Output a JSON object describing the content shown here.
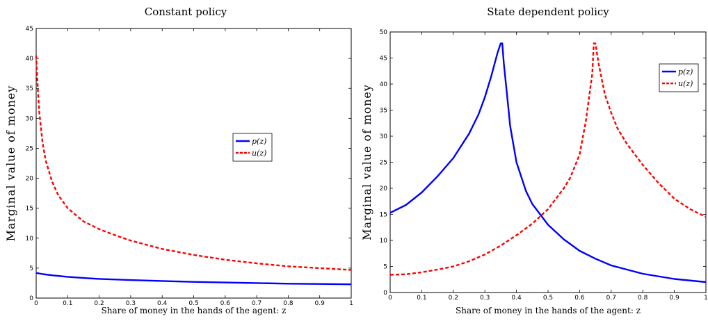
{
  "chart_data": [
    {
      "type": "line",
      "title": "Constant policy",
      "xlabel": "Share of money in the hands of the agent: z",
      "ylabel": "Marginal value of money",
      "xlim": [
        0,
        1
      ],
      "ylim": [
        0,
        45
      ],
      "xticks": [
        "0",
        "0.1",
        "0.2",
        "0.3",
        "0.4",
        "0.5",
        "0.6",
        "0.7",
        "0.8",
        "0.9",
        "1"
      ],
      "yticks": [
        "0",
        "5",
        "10",
        "15",
        "20",
        "25",
        "30",
        "35",
        "40",
        "45"
      ],
      "legend_position": "center-right",
      "grid": false,
      "series": [
        {
          "name": "p(z)",
          "color": "#0000ff",
          "style": "solid",
          "x": [
            0,
            0.02,
            0.05,
            0.1,
            0.15,
            0.2,
            0.3,
            0.4,
            0.5,
            0.6,
            0.7,
            0.8,
            0.9,
            1.0
          ],
          "y": [
            4.2,
            4.0,
            3.8,
            3.55,
            3.35,
            3.2,
            3.0,
            2.85,
            2.7,
            2.6,
            2.5,
            2.4,
            2.35,
            2.3
          ]
        },
        {
          "name": "u(z)",
          "color": "#ff0000",
          "style": "dashed",
          "x": [
            0,
            0.005,
            0.01,
            0.02,
            0.03,
            0.05,
            0.07,
            0.1,
            0.15,
            0.2,
            0.25,
            0.3,
            0.4,
            0.5,
            0.6,
            0.7,
            0.8,
            0.9,
            1.0
          ],
          "y": [
            40.5,
            35.0,
            31.0,
            26.0,
            23.0,
            19.5,
            17.2,
            15.0,
            12.8,
            11.5,
            10.5,
            9.6,
            8.2,
            7.2,
            6.4,
            5.8,
            5.3,
            5.0,
            4.7
          ]
        }
      ]
    },
    {
      "type": "line",
      "title": "State dependent policy",
      "xlabel": "Share of money in the hands of the agent: z",
      "ylabel": "Marginal value of money",
      "xlim": [
        0,
        1
      ],
      "ylim": [
        0,
        50
      ],
      "xticks": [
        "0",
        "0.1",
        "0.2",
        "0.3",
        "0.4",
        "0.5",
        "0.6",
        "0.7",
        "0.8",
        "0.9",
        "1"
      ],
      "yticks": [
        "0",
        "5",
        "10",
        "15",
        "20",
        "25",
        "30",
        "35",
        "40",
        "45",
        "50"
      ],
      "legend_position": "top-right",
      "grid": false,
      "series": [
        {
          "name": "p(z)",
          "color": "#0000ff",
          "style": "solid",
          "x": [
            0,
            0.05,
            0.1,
            0.15,
            0.2,
            0.25,
            0.28,
            0.3,
            0.32,
            0.34,
            0.35,
            0.355,
            0.36,
            0.37,
            0.38,
            0.4,
            0.43,
            0.45,
            0.5,
            0.55,
            0.6,
            0.65,
            0.7,
            0.8,
            0.9,
            1.0
          ],
          "y": [
            15.3,
            16.8,
            19.2,
            22.3,
            25.8,
            30.5,
            34.2,
            37.5,
            41.5,
            46.0,
            47.8,
            47.8,
            44.0,
            38.0,
            32.0,
            25.0,
            19.5,
            17.0,
            13.0,
            10.2,
            8.0,
            6.5,
            5.2,
            3.6,
            2.6,
            2.0
          ]
        },
        {
          "name": "u(z)",
          "color": "#ff0000",
          "style": "dashed",
          "x": [
            0,
            0.05,
            0.1,
            0.15,
            0.2,
            0.25,
            0.3,
            0.35,
            0.4,
            0.45,
            0.5,
            0.55,
            0.57,
            0.6,
            0.62,
            0.64,
            0.645,
            0.65,
            0.66,
            0.68,
            0.7,
            0.72,
            0.75,
            0.8,
            0.85,
            0.9,
            0.95,
            1.0
          ],
          "y": [
            3.4,
            3.5,
            3.9,
            4.4,
            5.0,
            6.0,
            7.3,
            9.0,
            11.0,
            13.2,
            16.0,
            20.0,
            22.0,
            26.5,
            33.0,
            42.0,
            47.8,
            47.8,
            44.0,
            38.0,
            34.5,
            31.5,
            28.5,
            24.5,
            21.0,
            18.0,
            16.0,
            14.5
          ]
        }
      ]
    }
  ]
}
